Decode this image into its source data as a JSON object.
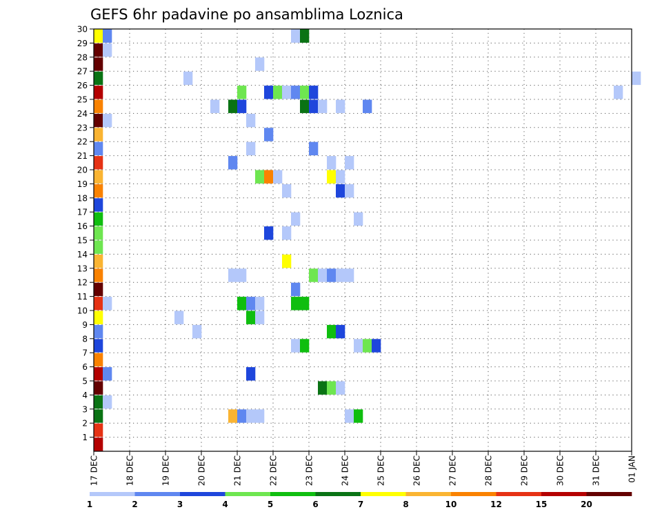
{
  "chart_data": {
    "type": "heatmap",
    "title": "GEFS 6hr padavine po ansamblima Loznica",
    "xlabel": "",
    "ylabel": "",
    "x_start": "17 DEC",
    "x_step_hours": 6,
    "x_steps": 61,
    "x_ticks": [
      "17 DEC",
      "18 DEC",
      "19 DEC",
      "20 DEC",
      "21 DEC",
      "22 DEC",
      "23 DEC",
      "24 DEC",
      "25 DEC",
      "26 DEC",
      "27 DEC",
      "28 DEC",
      "29 DEC",
      "30 DEC",
      "31 DEC",
      "01 JAN"
    ],
    "y_ticks": [
      1,
      2,
      3,
      4,
      5,
      6,
      7,
      8,
      9,
      10,
      11,
      12,
      13,
      14,
      15,
      16,
      17,
      18,
      19,
      20,
      21,
      22,
      23,
      24,
      25,
      26,
      27,
      28,
      29,
      30
    ],
    "ylim": [
      0,
      30
    ],
    "grid": true,
    "colorbar": {
      "position": "bottom",
      "labels": [
        "1",
        "2",
        "3",
        "4",
        "5",
        "6",
        "7",
        "8",
        "10",
        "12",
        "15",
        "20"
      ],
      "colors": [
        "#b4c8fa",
        "#5f87f0",
        "#1e46dc",
        "#6ee650",
        "#0fbe0f",
        "#0a7314",
        "#ffff00",
        "#fab432",
        "#fa8200",
        "#e63214",
        "#b40000",
        "#640000"
      ]
    },
    "cells": [
      [
        30,
        0,
        7
      ],
      [
        30,
        1,
        2
      ],
      [
        30,
        22,
        1
      ],
      [
        30,
        23,
        6
      ],
      [
        29,
        0,
        12
      ],
      [
        29,
        1,
        1
      ],
      [
        28,
        0,
        12
      ],
      [
        28,
        18,
        1
      ],
      [
        27,
        0,
        6
      ],
      [
        27,
        10,
        1
      ],
      [
        27,
        60,
        1
      ],
      [
        26,
        0,
        11
      ],
      [
        26,
        16,
        4
      ],
      [
        26,
        19,
        3
      ],
      [
        26,
        20,
        4
      ],
      [
        26,
        21,
        1
      ],
      [
        26,
        22,
        2
      ],
      [
        26,
        23,
        4
      ],
      [
        26,
        24,
        3
      ],
      [
        26,
        58,
        1
      ],
      [
        25,
        0,
        9
      ],
      [
        25,
        13,
        1
      ],
      [
        25,
        15,
        6
      ],
      [
        25,
        16,
        3
      ],
      [
        25,
        23,
        6
      ],
      [
        25,
        24,
        3
      ],
      [
        25,
        25,
        1
      ],
      [
        25,
        27,
        1
      ],
      [
        25,
        30,
        2
      ],
      [
        24,
        0,
        12
      ],
      [
        24,
        1,
        1
      ],
      [
        24,
        17,
        1
      ],
      [
        23,
        0,
        8
      ],
      [
        23,
        19,
        2
      ],
      [
        22,
        0,
        2
      ],
      [
        22,
        17,
        1
      ],
      [
        22,
        24,
        2
      ],
      [
        21,
        0,
        10
      ],
      [
        21,
        15,
        2
      ],
      [
        21,
        26,
        1
      ],
      [
        21,
        28,
        1
      ],
      [
        20,
        0,
        8
      ],
      [
        20,
        18,
        4
      ],
      [
        20,
        19,
        9
      ],
      [
        20,
        20,
        1
      ],
      [
        20,
        26,
        7
      ],
      [
        20,
        27,
        1
      ],
      [
        19,
        0,
        9
      ],
      [
        19,
        21,
        1
      ],
      [
        19,
        27,
        3
      ],
      [
        19,
        28,
        1
      ],
      [
        18,
        0,
        3
      ],
      [
        17,
        0,
        5
      ],
      [
        17,
        22,
        1
      ],
      [
        17,
        29,
        1
      ],
      [
        16,
        0,
        4
      ],
      [
        16,
        19,
        3
      ],
      [
        16,
        21,
        1
      ],
      [
        15,
        0,
        4
      ],
      [
        14,
        0,
        8
      ],
      [
        14,
        21,
        7
      ],
      [
        13,
        0,
        9
      ],
      [
        13,
        15,
        1
      ],
      [
        13,
        16,
        1
      ],
      [
        13,
        24,
        4
      ],
      [
        13,
        25,
        1
      ],
      [
        13,
        26,
        2
      ],
      [
        13,
        27,
        1
      ],
      [
        13,
        28,
        1
      ],
      [
        12,
        0,
        12
      ],
      [
        12,
        22,
        2
      ],
      [
        11,
        0,
        10
      ],
      [
        11,
        1,
        1
      ],
      [
        11,
        16,
        5
      ],
      [
        11,
        17,
        2
      ],
      [
        11,
        18,
        1
      ],
      [
        11,
        22,
        5
      ],
      [
        11,
        23,
        5
      ],
      [
        10,
        0,
        7
      ],
      [
        10,
        9,
        1
      ],
      [
        10,
        17,
        5
      ],
      [
        10,
        18,
        1
      ],
      [
        9,
        0,
        2
      ],
      [
        9,
        11,
        1
      ],
      [
        9,
        26,
        5
      ],
      [
        9,
        27,
        3
      ],
      [
        8,
        0,
        3
      ],
      [
        8,
        22,
        1
      ],
      [
        8,
        23,
        5
      ],
      [
        8,
        29,
        1
      ],
      [
        8,
        30,
        4
      ],
      [
        8,
        31,
        3
      ],
      [
        7,
        0,
        9
      ],
      [
        6,
        0,
        11
      ],
      [
        6,
        1,
        2
      ],
      [
        6,
        17,
        3
      ],
      [
        5,
        0,
        12
      ],
      [
        5,
        25,
        6
      ],
      [
        5,
        26,
        4
      ],
      [
        5,
        27,
        1
      ],
      [
        4,
        0,
        6
      ],
      [
        4,
        1,
        1
      ],
      [
        3,
        0,
        6
      ],
      [
        3,
        15,
        8
      ],
      [
        3,
        16,
        2
      ],
      [
        3,
        17,
        1
      ],
      [
        3,
        18,
        1
      ],
      [
        3,
        28,
        1
      ],
      [
        3,
        29,
        5
      ],
      [
        2,
        0,
        10
      ],
      [
        1,
        0,
        11
      ]
    ]
  }
}
